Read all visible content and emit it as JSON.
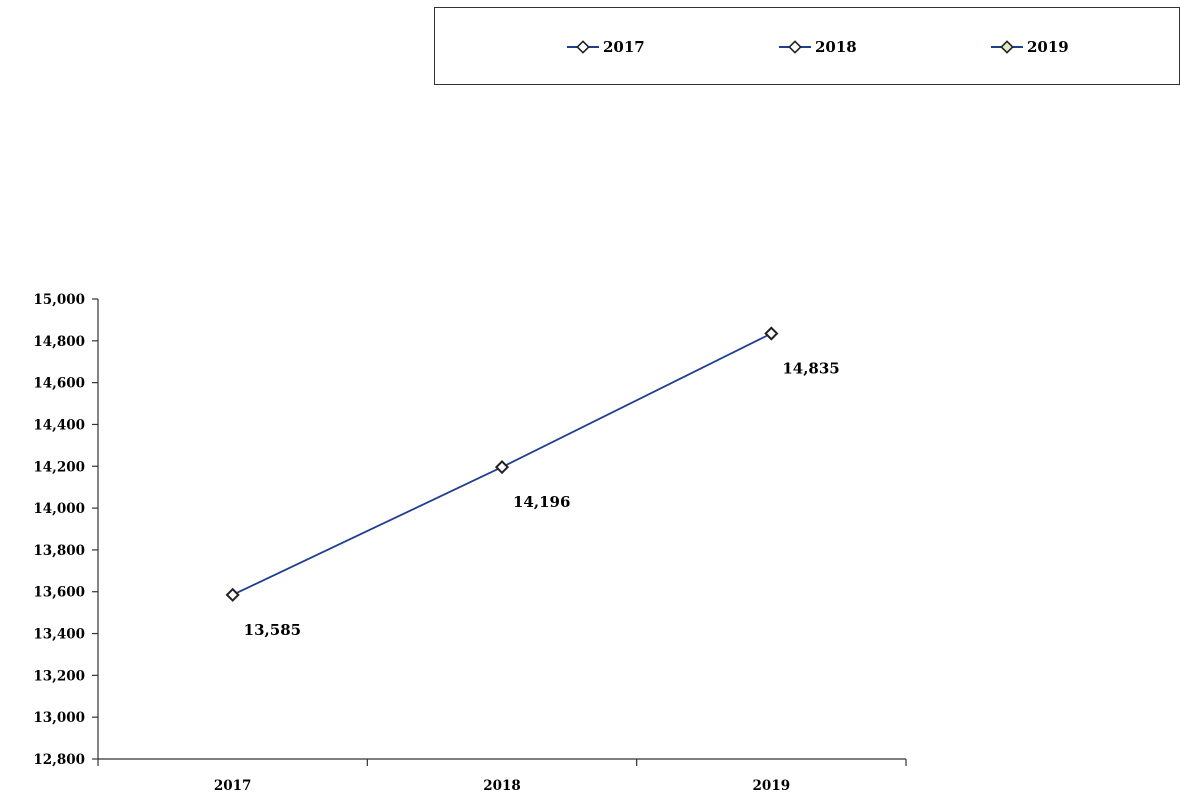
{
  "chart_data": {
    "type": "line",
    "categories": [
      "2017",
      "2018",
      "2019"
    ],
    "series": [
      {
        "values": [
          13585,
          14196,
          14835
        ],
        "data_labels": [
          "13,585",
          "14,196",
          "14,835"
        ],
        "color": "#1f3f8f"
      }
    ],
    "legend": {
      "entries": [
        "2017",
        "2018",
        "2019"
      ],
      "placement": "top-right",
      "marker_colors": [
        "#1f3f8f",
        "#1f3f8f",
        "#1f3f8f"
      ]
    },
    "ylim": [
      12800,
      15000
    ],
    "yticks": [
      12800,
      13000,
      13200,
      13400,
      13600,
      13800,
      14000,
      14200,
      14400,
      14600,
      14800,
      15000
    ],
    "ytick_labels": [
      "12,800",
      "13,000",
      "13,200",
      "13,400",
      "13,600",
      "13,800",
      "14,000",
      "14,200",
      "14,400",
      "14,600",
      "14,800",
      "15,000"
    ],
    "grid": false,
    "title": "",
    "xlabel": "",
    "ylabel": ""
  }
}
